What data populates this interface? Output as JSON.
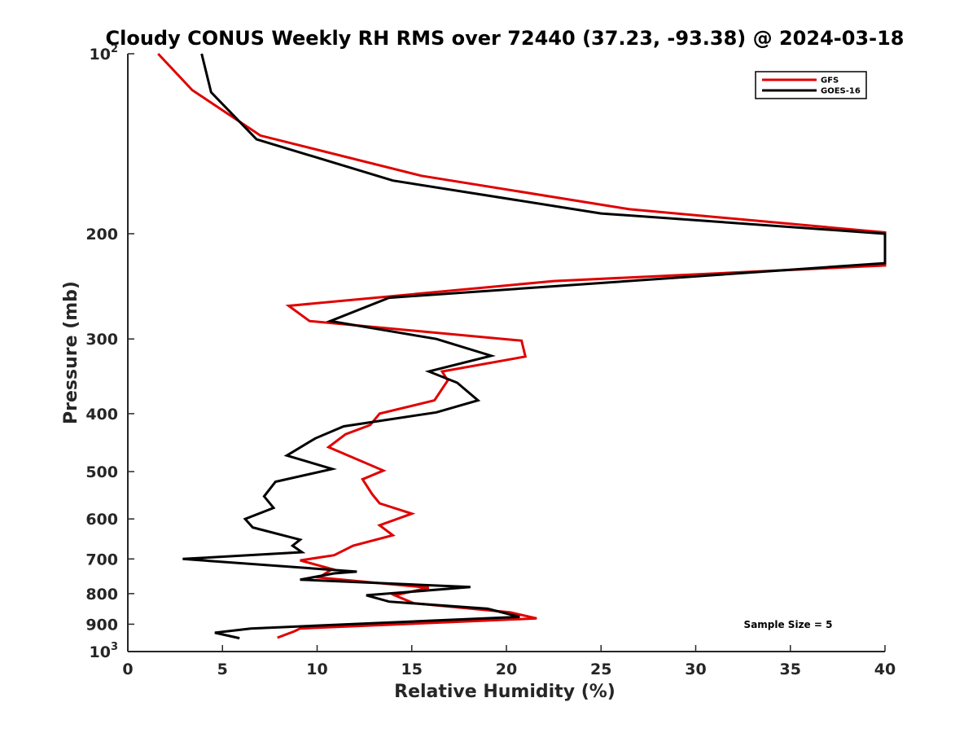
{
  "chart_data": {
    "type": "line",
    "title": "Cloudy CONUS Weekly RH RMS over 72440 (37.23, -93.38) @ 2024-03-18",
    "xlabel": "Relative Humidity (%)",
    "ylabel": "Pressure (mb)",
    "xlim": [
      0,
      40
    ],
    "ylim": [
      100,
      1000
    ],
    "yscale": "log",
    "yreversed": true,
    "xticks": [
      "0",
      "5",
      "10",
      "15",
      "20",
      "25",
      "30",
      "35",
      "40"
    ],
    "yticks": [
      {
        "value": 100,
        "base": "10",
        "exp": "2"
      },
      {
        "value": 200,
        "base": "200",
        "exp": ""
      },
      {
        "value": 300,
        "base": "300",
        "exp": ""
      },
      {
        "value": 400,
        "base": "400",
        "exp": ""
      },
      {
        "value": 500,
        "base": "500",
        "exp": ""
      },
      {
        "value": 600,
        "base": "600",
        "exp": ""
      },
      {
        "value": 700,
        "base": "700",
        "exp": ""
      },
      {
        "value": 800,
        "base": "800",
        "exp": ""
      },
      {
        "value": 900,
        "base": "900",
        "exp": ""
      },
      {
        "value": 1000,
        "base": "10",
        "exp": "3"
      }
    ],
    "grid": false,
    "legend_position": "top-right",
    "annotation": "Sample Size = 5",
    "series": [
      {
        "name": "GFS",
        "color": "#e00000",
        "points": [
          [
            1.6,
            100
          ],
          [
            3.4,
            115
          ],
          [
            7.0,
            137
          ],
          [
            15.5,
            160
          ],
          [
            26.5,
            182
          ],
          [
            40,
            199
          ],
          [
            40,
            226
          ],
          [
            22.5,
            240
          ],
          [
            8.5,
            264
          ],
          [
            9.6,
            280
          ],
          [
            20.8,
            302
          ],
          [
            21.0,
            321
          ],
          [
            16.6,
            340
          ],
          [
            16.9,
            352
          ],
          [
            16.2,
            380
          ],
          [
            13.3,
            400
          ],
          [
            12.8,
            418
          ],
          [
            11.5,
            433
          ],
          [
            10.6,
            455
          ],
          [
            13.5,
            498
          ],
          [
            12.4,
            515
          ],
          [
            12.9,
            545
          ],
          [
            13.3,
            565
          ],
          [
            15.0,
            588
          ],
          [
            13.3,
            615
          ],
          [
            14.0,
            639
          ],
          [
            11.9,
            665
          ],
          [
            10.9,
            690
          ],
          [
            9.1,
            704
          ],
          [
            10.8,
            728
          ],
          [
            10.1,
            752
          ],
          [
            15.9,
            782
          ],
          [
            14.1,
            805
          ],
          [
            15.1,
            830
          ],
          [
            20.2,
            860
          ],
          [
            21.6,
            880
          ],
          [
            9.1,
            915
          ],
          [
            8.8,
            925
          ],
          [
            7.9,
            948
          ]
        ]
      },
      {
        "name": "GOES-16",
        "color": "#000000",
        "points": [
          [
            3.9,
            100
          ],
          [
            4.4,
            116
          ],
          [
            6.8,
            139
          ],
          [
            14.0,
            163
          ],
          [
            25.0,
            185
          ],
          [
            40,
            200
          ],
          [
            40,
            224
          ],
          [
            13.8,
            256
          ],
          [
            10.7,
            280
          ],
          [
            16.3,
            300
          ],
          [
            19.2,
            320
          ],
          [
            15.9,
            340
          ],
          [
            17.4,
            355
          ],
          [
            18.5,
            380
          ],
          [
            16.3,
            398
          ],
          [
            11.4,
            420
          ],
          [
            9.9,
            440
          ],
          [
            8.4,
            470
          ],
          [
            10.8,
            495
          ],
          [
            7.8,
            520
          ],
          [
            7.2,
            550
          ],
          [
            7.7,
            575
          ],
          [
            6.2,
            600
          ],
          [
            6.6,
            620
          ],
          [
            9.1,
            650
          ],
          [
            8.7,
            665
          ],
          [
            9.2,
            682
          ],
          [
            2.9,
            700
          ],
          [
            12.1,
            735
          ],
          [
            10.9,
            740
          ],
          [
            9.1,
            758
          ],
          [
            18.1,
            780
          ],
          [
            12.6,
            805
          ],
          [
            13.8,
            825
          ],
          [
            19.0,
            848
          ],
          [
            20.7,
            875
          ],
          [
            6.5,
            915
          ],
          [
            4.6,
            930
          ],
          [
            5.9,
            950
          ]
        ]
      }
    ]
  }
}
